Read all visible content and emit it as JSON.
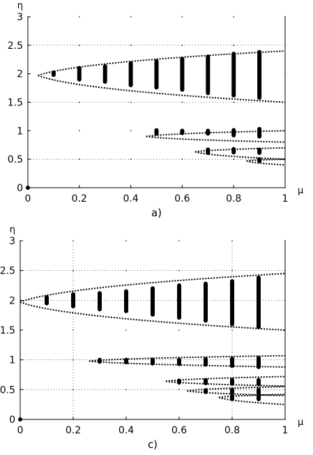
{
  "chart_data": [
    {
      "type": "scatter",
      "panel_label": "a)",
      "xlabel": "μ",
      "ylabel": "η",
      "xlim": [
        0,
        1
      ],
      "ylim": [
        0,
        3
      ],
      "x_ticks": [
        "0",
        "0.2",
        "0.4",
        "0.6",
        "0.8",
        "1"
      ],
      "y_ticks": [
        "0",
        "0.5",
        "1",
        "1.5",
        "2",
        "2.5",
        "3"
      ],
      "grid": "horizontal gridlines at y = 0.5, 1.5, 2.5; point grid elsewhere",
      "origin_point": [
        0,
        0
      ],
      "instability_bands": [
        {
          "mu": 0.1,
          "eta_min": 1.98,
          "eta_max": 2.02
        },
        {
          "mu": 0.2,
          "eta_min": 1.9,
          "eta_max": 2.1
        },
        {
          "mu": 0.3,
          "eta_min": 1.86,
          "eta_max": 2.13
        },
        {
          "mu": 0.4,
          "eta_min": 1.8,
          "eta_max": 2.18
        },
        {
          "mu": 0.5,
          "eta_min": 1.76,
          "eta_max": 2.22
        },
        {
          "mu": 0.6,
          "eta_min": 1.72,
          "eta_max": 2.26
        },
        {
          "mu": 0.7,
          "eta_min": 1.66,
          "eta_max": 2.3
        },
        {
          "mu": 0.8,
          "eta_min": 1.62,
          "eta_max": 2.35
        },
        {
          "mu": 0.9,
          "eta_min": 1.58,
          "eta_max": 2.38
        },
        {
          "mu": 0.5,
          "eta_min": 0.97,
          "eta_max": 0.99
        },
        {
          "mu": 0.6,
          "eta_min": 0.96,
          "eta_max": 1.0
        },
        {
          "mu": 0.7,
          "eta_min": 0.95,
          "eta_max": 1.0
        },
        {
          "mu": 0.8,
          "eta_min": 0.92,
          "eta_max": 1.01
        },
        {
          "mu": 0.9,
          "eta_min": 0.9,
          "eta_max": 1.03
        },
        {
          "mu": 0.7,
          "eta_min": 0.63,
          "eta_max": 0.65
        },
        {
          "mu": 0.8,
          "eta_min": 0.64,
          "eta_max": 0.66
        },
        {
          "mu": 0.9,
          "eta_min": 0.63,
          "eta_max": 0.65
        },
        {
          "mu": 0.9,
          "eta_min": 0.47,
          "eta_max": 0.5
        }
      ],
      "envelopes": [
        {
          "tip": [
            0.04,
            1.97
          ],
          "upper_end": [
            1.0,
            2.4
          ],
          "lower_end": [
            1.0,
            1.5
          ]
        },
        {
          "tip": [
            0.46,
            0.9
          ],
          "upper_end": [
            1.0,
            1.0
          ],
          "lower_end": [
            1.0,
            0.8
          ]
        },
        {
          "tip": [
            0.65,
            0.63
          ],
          "upper_end": [
            1.0,
            0.7
          ],
          "lower_end": [
            1.0,
            0.5
          ]
        },
        {
          "tip": [
            0.85,
            0.47
          ],
          "upper_end": [
            1.0,
            0.5
          ],
          "lower_end": [
            1.0,
            0.4
          ]
        }
      ]
    },
    {
      "type": "scatter",
      "panel_label": "c)",
      "xlabel": "μ",
      "ylabel": "η",
      "xlim": [
        0,
        1
      ],
      "ylim": [
        0,
        3
      ],
      "x_ticks": [
        "0",
        "0.2",
        "0.4",
        "0.6",
        "0.8",
        "1"
      ],
      "y_ticks": [
        "0",
        "0.5",
        "1",
        "1.5",
        "2",
        "2.5",
        "3"
      ],
      "grid": "dotted gridlines at x = 0.2, 0.8 and y = 0.5, 1, 2, 2.5",
      "origin_point": [
        0,
        0
      ],
      "instability_bands": [
        {
          "mu": 0.1,
          "eta_min": 1.95,
          "eta_max": 2.05
        },
        {
          "mu": 0.2,
          "eta_min": 1.9,
          "eta_max": 2.1
        },
        {
          "mu": 0.3,
          "eta_min": 1.85,
          "eta_max": 2.12
        },
        {
          "mu": 0.4,
          "eta_min": 1.82,
          "eta_max": 2.15
        },
        {
          "mu": 0.5,
          "eta_min": 1.76,
          "eta_max": 2.2
        },
        {
          "mu": 0.6,
          "eta_min": 1.71,
          "eta_max": 2.25
        },
        {
          "mu": 0.7,
          "eta_min": 1.66,
          "eta_max": 2.28
        },
        {
          "mu": 0.8,
          "eta_min": 1.6,
          "eta_max": 2.32
        },
        {
          "mu": 0.9,
          "eta_min": 1.55,
          "eta_max": 2.38
        },
        {
          "mu": 0.3,
          "eta_min": 0.97,
          "eta_max": 1.0
        },
        {
          "mu": 0.4,
          "eta_min": 0.96,
          "eta_max": 1.0
        },
        {
          "mu": 0.5,
          "eta_min": 0.94,
          "eta_max": 1.0
        },
        {
          "mu": 0.6,
          "eta_min": 0.93,
          "eta_max": 1.0
        },
        {
          "mu": 0.7,
          "eta_min": 0.92,
          "eta_max": 1.01
        },
        {
          "mu": 0.8,
          "eta_min": 0.9,
          "eta_max": 1.02
        },
        {
          "mu": 0.9,
          "eta_min": 0.88,
          "eta_max": 1.03
        },
        {
          "mu": 0.6,
          "eta_min": 0.62,
          "eta_max": 0.65
        },
        {
          "mu": 0.7,
          "eta_min": 0.61,
          "eta_max": 0.66
        },
        {
          "mu": 0.8,
          "eta_min": 0.6,
          "eta_max": 0.66
        },
        {
          "mu": 0.9,
          "eta_min": 0.59,
          "eta_max": 0.66
        },
        {
          "mu": 0.7,
          "eta_min": 0.46,
          "eta_max": 0.49
        },
        {
          "mu": 0.8,
          "eta_min": 0.45,
          "eta_max": 0.5
        },
        {
          "mu": 0.9,
          "eta_min": 0.44,
          "eta_max": 0.5
        },
        {
          "mu": 0.8,
          "eta_min": 0.36,
          "eta_max": 0.38
        },
        {
          "mu": 0.9,
          "eta_min": 0.34,
          "eta_max": 0.39
        }
      ],
      "envelopes": [
        {
          "tip": [
            0.0,
            1.97
          ],
          "upper_end": [
            1.0,
            2.45
          ],
          "lower_end": [
            1.0,
            1.5
          ]
        },
        {
          "tip": [
            0.26,
            0.98
          ],
          "upper_end": [
            1.0,
            1.07
          ],
          "lower_end": [
            1.0,
            0.88
          ]
        },
        {
          "tip": [
            0.55,
            0.64
          ],
          "upper_end": [
            1.0,
            0.72
          ],
          "lower_end": [
            1.0,
            0.56
          ]
        },
        {
          "tip": [
            0.63,
            0.48
          ],
          "upper_end": [
            1.0,
            0.55
          ],
          "lower_end": [
            1.0,
            0.4
          ]
        },
        {
          "tip": [
            0.75,
            0.37
          ],
          "upper_end": [
            1.0,
            0.42
          ],
          "lower_end": [
            1.0,
            0.25
          ]
        }
      ]
    }
  ]
}
